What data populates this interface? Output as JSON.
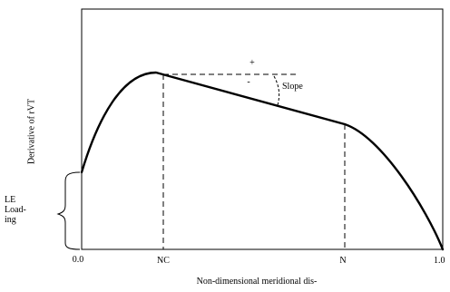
{
  "diagram": {
    "y_axis_label": "Derivative of rVT",
    "x_axis_label": "Non-dimensional meridional dis-",
    "x_ticks": [
      "0.0",
      "NC",
      "N",
      "1.0"
    ],
    "le_label": "LE\nLoad-\ning",
    "slope_label": "Slope",
    "plus_sign": "+",
    "minus_sign": "-"
  }
}
